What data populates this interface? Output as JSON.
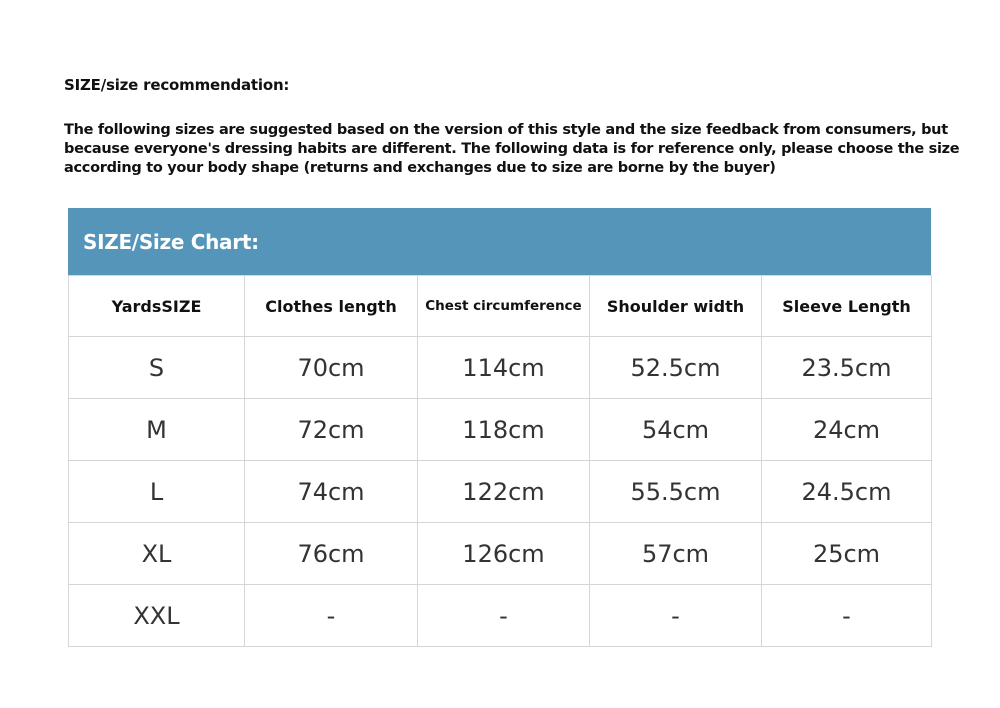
{
  "title": "SIZE/size recommendation:",
  "description": "The following sizes are suggested based on the version of this style and the size feedback from consumers, but because everyone's dressing habits are different. The following data is for reference only, please choose the size according to your body shape (returns and exchanges due to size are borne by the buyer)",
  "chart": {
    "heading": "SIZE/Size Chart:",
    "header_color": "#5495b9",
    "columns": [
      "YardsSIZE",
      "Clothes length",
      "Chest circumference",
      "Shoulder width",
      "Sleeve Length"
    ],
    "rows": [
      [
        "S",
        "70cm",
        "114cm",
        "52.5cm",
        "23.5cm"
      ],
      [
        "M",
        "72cm",
        "118cm",
        "54cm",
        "24cm"
      ],
      [
        "L",
        "74cm",
        "122cm",
        "55.5cm",
        "24.5cm"
      ],
      [
        "XL",
        "76cm",
        "126cm",
        "57cm",
        "25cm"
      ],
      [
        "XXL",
        "-",
        "-",
        "-",
        "-"
      ]
    ]
  }
}
